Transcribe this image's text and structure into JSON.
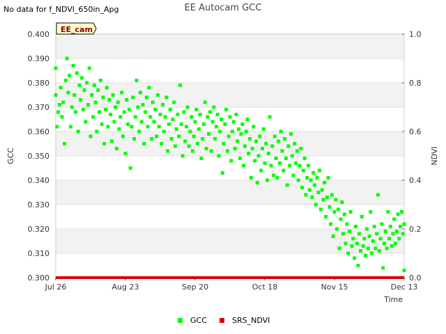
{
  "note": "No data for f_NDVI_650in_Apg",
  "chart_data": {
    "type": "scatter",
    "title": "EE Autocam GCC",
    "xlabel": "Time",
    "ylabel": "GCC",
    "y2label": "NDVI",
    "site_label": "EE_cam",
    "x_ticks": [
      "Jul 26",
      "Aug 23",
      "Sep 20",
      "Oct 18",
      "Nov 15",
      "Dec 13"
    ],
    "xlim": [
      0,
      140
    ],
    "ylim": [
      0.3,
      0.4
    ],
    "y_ticks": [
      "0.300",
      "0.310",
      "0.320",
      "0.330",
      "0.340",
      "0.350",
      "0.360",
      "0.370",
      "0.380",
      "0.390",
      "0.400"
    ],
    "y2lim": [
      0.0,
      1.0
    ],
    "y2_ticks": [
      "0.0",
      "0.2",
      "0.4",
      "0.6",
      "0.8",
      "1.0"
    ],
    "grid": true,
    "legend_position": "bottom",
    "series": [
      {
        "name": "GCC",
        "color": "#00ff00",
        "marker": "square",
        "points": [
          [
            0,
            0.386
          ],
          [
            0,
            0.375
          ],
          [
            0.5,
            0.362
          ],
          [
            1,
            0.368
          ],
          [
            1.5,
            0.371
          ],
          [
            2,
            0.378
          ],
          [
            2.5,
            0.366
          ],
          [
            3,
            0.372
          ],
          [
            3.5,
            0.355
          ],
          [
            4,
            0.381
          ],
          [
            4.5,
            0.39
          ],
          [
            5,
            0.376
          ],
          [
            5.5,
            0.383
          ],
          [
            6,
            0.362
          ],
          [
            6.5,
            0.37
          ],
          [
            7,
            0.387
          ],
          [
            7.5,
            0.375
          ],
          [
            8,
            0.368
          ],
          [
            8.5,
            0.384
          ],
          [
            9,
            0.36
          ],
          [
            9.5,
            0.379
          ],
          [
            10,
            0.373
          ],
          [
            10.5,
            0.382
          ],
          [
            11,
            0.369
          ],
          [
            11.5,
            0.377
          ],
          [
            12,
            0.364
          ],
          [
            12.5,
            0.38
          ],
          [
            13,
            0.371
          ],
          [
            13.5,
            0.386
          ],
          [
            14,
            0.358
          ],
          [
            14.5,
            0.375
          ],
          [
            15,
            0.366
          ],
          [
            15.5,
            0.379
          ],
          [
            16,
            0.372
          ],
          [
            16.5,
            0.36
          ],
          [
            17,
            0.377
          ],
          [
            17.5,
            0.368
          ],
          [
            18,
            0.381
          ],
          [
            18.5,
            0.363
          ],
          [
            19,
            0.374
          ],
          [
            19.5,
            0.355
          ],
          [
            20,
            0.369
          ],
          [
            20.5,
            0.378
          ],
          [
            21,
            0.362
          ],
          [
            21.5,
            0.373
          ],
          [
            22,
            0.367
          ],
          [
            22.5,
            0.356
          ],
          [
            23,
            0.375
          ],
          [
            23.5,
            0.364
          ],
          [
            24,
            0.37
          ],
          [
            24.5,
            0.353
          ],
          [
            25,
            0.372
          ],
          [
            25.5,
            0.361
          ],
          [
            26,
            0.366
          ],
          [
            26.5,
            0.376
          ],
          [
            27,
            0.358
          ],
          [
            27.5,
            0.368
          ],
          [
            28,
            0.351
          ],
          [
            28.5,
            0.373
          ],
          [
            29,
            0.363
          ],
          [
            29.5,
            0.369
          ],
          [
            30,
            0.345
          ],
          [
            30.5,
            0.362
          ],
          [
            31,
            0.374
          ],
          [
            31.5,
            0.357
          ],
          [
            32,
            0.366
          ],
          [
            32.5,
            0.381
          ],
          [
            33,
            0.37
          ],
          [
            33.5,
            0.36
          ],
          [
            34,
            0.376
          ],
          [
            34.5,
            0.364
          ],
          [
            35,
            0.371
          ],
          [
            35.5,
            0.355
          ],
          [
            36,
            0.368
          ],
          [
            36.5,
            0.374
          ],
          [
            37,
            0.362
          ],
          [
            37.5,
            0.378
          ],
          [
            38,
            0.366
          ],
          [
            38.5,
            0.357
          ],
          [
            39,
            0.372
          ],
          [
            39.5,
            0.364
          ],
          [
            40,
            0.369
          ],
          [
            40.5,
            0.358
          ],
          [
            41,
            0.375
          ],
          [
            41.5,
            0.362
          ],
          [
            42,
            0.367
          ],
          [
            42.5,
            0.355
          ],
          [
            43,
            0.371
          ],
          [
            43.5,
            0.36
          ],
          [
            44,
            0.366
          ],
          [
            44.5,
            0.374
          ],
          [
            45,
            0.352
          ],
          [
            45.5,
            0.363
          ],
          [
            46,
            0.369
          ],
          [
            46.5,
            0.357
          ],
          [
            47,
            0.365
          ],
          [
            47.5,
            0.372
          ],
          [
            48,
            0.354
          ],
          [
            48.5,
            0.361
          ],
          [
            49,
            0.367
          ],
          [
            49.5,
            0.358
          ],
          [
            50,
            0.379
          ],
          [
            50.5,
            0.363
          ],
          [
            51,
            0.35
          ],
          [
            51.5,
            0.368
          ],
          [
            52,
            0.356
          ],
          [
            52.5,
            0.362
          ],
          [
            53,
            0.37
          ],
          [
            53.5,
            0.354
          ],
          [
            54,
            0.36
          ],
          [
            54.5,
            0.366
          ],
          [
            55,
            0.352
          ],
          [
            55.5,
            0.358
          ],
          [
            56,
            0.364
          ],
          [
            56.5,
            0.369
          ],
          [
            57,
            0.355
          ],
          [
            57.5,
            0.361
          ],
          [
            58,
            0.367
          ],
          [
            58.5,
            0.349
          ],
          [
            59,
            0.357
          ],
          [
            59.5,
            0.363
          ],
          [
            60,
            0.372
          ],
          [
            60.5,
            0.353
          ],
          [
            61,
            0.366
          ],
          [
            61.5,
            0.359
          ],
          [
            62,
            0.368
          ],
          [
            62.5,
            0.352
          ],
          [
            63,
            0.364
          ],
          [
            63.5,
            0.37
          ],
          [
            64,
            0.357
          ],
          [
            64.5,
            0.362
          ],
          [
            65,
            0.367
          ],
          [
            65.5,
            0.35
          ],
          [
            66,
            0.36
          ],
          [
            66.5,
            0.365
          ],
          [
            67,
            0.343
          ],
          [
            67.5,
            0.355
          ],
          [
            68,
            0.363
          ],
          [
            68.5,
            0.369
          ],
          [
            69,
            0.352
          ],
          [
            69.5,
            0.358
          ],
          [
            70,
            0.366
          ],
          [
            70.5,
            0.348
          ],
          [
            71,
            0.36
          ],
          [
            71.5,
            0.364
          ],
          [
            72,
            0.353
          ],
          [
            72.5,
            0.367
          ],
          [
            73,
            0.356
          ],
          [
            73.5,
            0.361
          ],
          [
            74,
            0.349
          ],
          [
            74.5,
            0.359
          ],
          [
            75,
            0.363
          ],
          [
            75.5,
            0.346
          ],
          [
            76,
            0.354
          ],
          [
            76.5,
            0.36
          ],
          [
            77,
            0.365
          ],
          [
            77.5,
            0.351
          ],
          [
            78,
            0.357
          ],
          [
            78.5,
            0.341
          ],
          [
            79,
            0.353
          ],
          [
            79.5,
            0.362
          ],
          [
            80,
            0.348
          ],
          [
            80.5,
            0.356
          ],
          [
            81,
            0.339
          ],
          [
            81.5,
            0.35
          ],
          [
            82,
            0.358
          ],
          [
            82.5,
            0.344
          ],
          [
            83,
            0.353
          ],
          [
            83.5,
            0.361
          ],
          [
            84,
            0.347
          ],
          [
            84.5,
            0.355
          ],
          [
            85,
            0.34
          ],
          [
            85.5,
            0.351
          ],
          [
            86,
            0.366
          ],
          [
            86.5,
            0.346
          ],
          [
            87,
            0.354
          ],
          [
            87.5,
            0.342
          ],
          [
            88,
            0.358
          ],
          [
            88.5,
            0.349
          ],
          [
            89,
            0.341
          ],
          [
            89.5,
            0.356
          ],
          [
            90,
            0.347
          ],
          [
            90.5,
            0.36
          ],
          [
            91,
            0.352
          ],
          [
            91.5,
            0.344
          ],
          [
            92,
            0.357
          ],
          [
            92.5,
            0.349
          ],
          [
            93,
            0.338
          ],
          [
            93.5,
            0.354
          ],
          [
            94,
            0.346
          ],
          [
            94.5,
            0.359
          ],
          [
            95,
            0.35
          ],
          [
            95.5,
            0.342
          ],
          [
            96,
            0.355
          ],
          [
            96.5,
            0.347
          ],
          [
            97,
            0.352
          ],
          [
            97.5,
            0.34
          ],
          [
            98,
            0.346
          ],
          [
            98.5,
            0.353
          ],
          [
            99,
            0.337
          ],
          [
            99.5,
            0.344
          ],
          [
            100,
            0.349
          ],
          [
            100.5,
            0.334
          ],
          [
            101,
            0.341
          ],
          [
            101.5,
            0.346
          ],
          [
            102,
            0.336
          ],
          [
            102.5,
            0.34
          ],
          [
            103,
            0.333
          ],
          [
            103.5,
            0.343
          ],
          [
            104,
            0.338
          ],
          [
            104.5,
            0.33
          ],
          [
            105,
            0.341
          ],
          [
            105.5,
            0.335
          ],
          [
            106,
            0.344
          ],
          [
            106.5,
            0.328
          ],
          [
            107,
            0.336
          ],
          [
            107.5,
            0.332
          ],
          [
            108,
            0.339
          ],
          [
            108.5,
            0.325
          ],
          [
            109,
            0.333
          ],
          [
            109.5,
            0.341
          ],
          [
            110,
            0.329
          ],
          [
            110.5,
            0.322
          ],
          [
            111,
            0.334
          ],
          [
            111.5,
            0.317
          ],
          [
            112,
            0.327
          ],
          [
            112.5,
            0.332
          ],
          [
            113,
            0.32
          ],
          [
            113.5,
            0.328
          ],
          [
            114,
            0.312
          ],
          [
            114.5,
            0.324
          ],
          [
            115,
            0.331
          ],
          [
            115.5,
            0.318
          ],
          [
            116,
            0.326
          ],
          [
            116.5,
            0.314
          ],
          [
            117,
            0.322
          ],
          [
            117.5,
            0.31
          ],
          [
            118,
            0.319
          ],
          [
            118.5,
            0.327
          ],
          [
            119,
            0.313
          ],
          [
            119.5,
            0.316
          ],
          [
            120,
            0.308
          ],
          [
            120.5,
            0.321
          ],
          [
            121,
            0.314
          ],
          [
            121.5,
            0.305
          ],
          [
            122,
            0.318
          ],
          [
            122.5,
            0.311
          ],
          [
            123,
            0.325
          ],
          [
            123.5,
            0.313
          ],
          [
            124,
            0.316
          ],
          [
            124.5,
            0.309
          ],
          [
            125,
            0.32
          ],
          [
            125.5,
            0.312
          ],
          [
            126,
            0.317
          ],
          [
            126.5,
            0.327
          ],
          [
            127,
            0.31
          ],
          [
            127.5,
            0.315
          ],
          [
            128,
            0.321
          ],
          [
            128.5,
            0.312
          ],
          [
            129,
            0.318
          ],
          [
            129.5,
            0.334
          ],
          [
            130,
            0.311
          ],
          [
            130.5,
            0.316
          ],
          [
            131,
            0.322
          ],
          [
            131.5,
            0.304
          ],
          [
            132,
            0.314
          ],
          [
            132.5,
            0.319
          ],
          [
            133,
            0.312
          ],
          [
            133.5,
            0.327
          ],
          [
            134,
            0.316
          ],
          [
            134.5,
            0.321
          ],
          [
            135,
            0.313
          ],
          [
            135.5,
            0.318
          ],
          [
            136,
            0.324
          ],
          [
            136.5,
            0.314
          ],
          [
            137,
            0.319
          ],
          [
            137.5,
            0.326
          ],
          [
            138,
            0.316
          ],
          [
            138.5,
            0.321
          ],
          [
            139,
            0.327
          ],
          [
            139.5,
            0.318
          ],
          [
            140,
            0.303
          ],
          [
            140,
            0.322
          ]
        ]
      },
      {
        "name": "SRS_NDVI",
        "color": "#dd0000",
        "marker": "square",
        "note_values": "flat near zero across full range",
        "points": [
          [
            0,
            0.0
          ],
          [
            140,
            0.0
          ]
        ]
      }
    ]
  }
}
